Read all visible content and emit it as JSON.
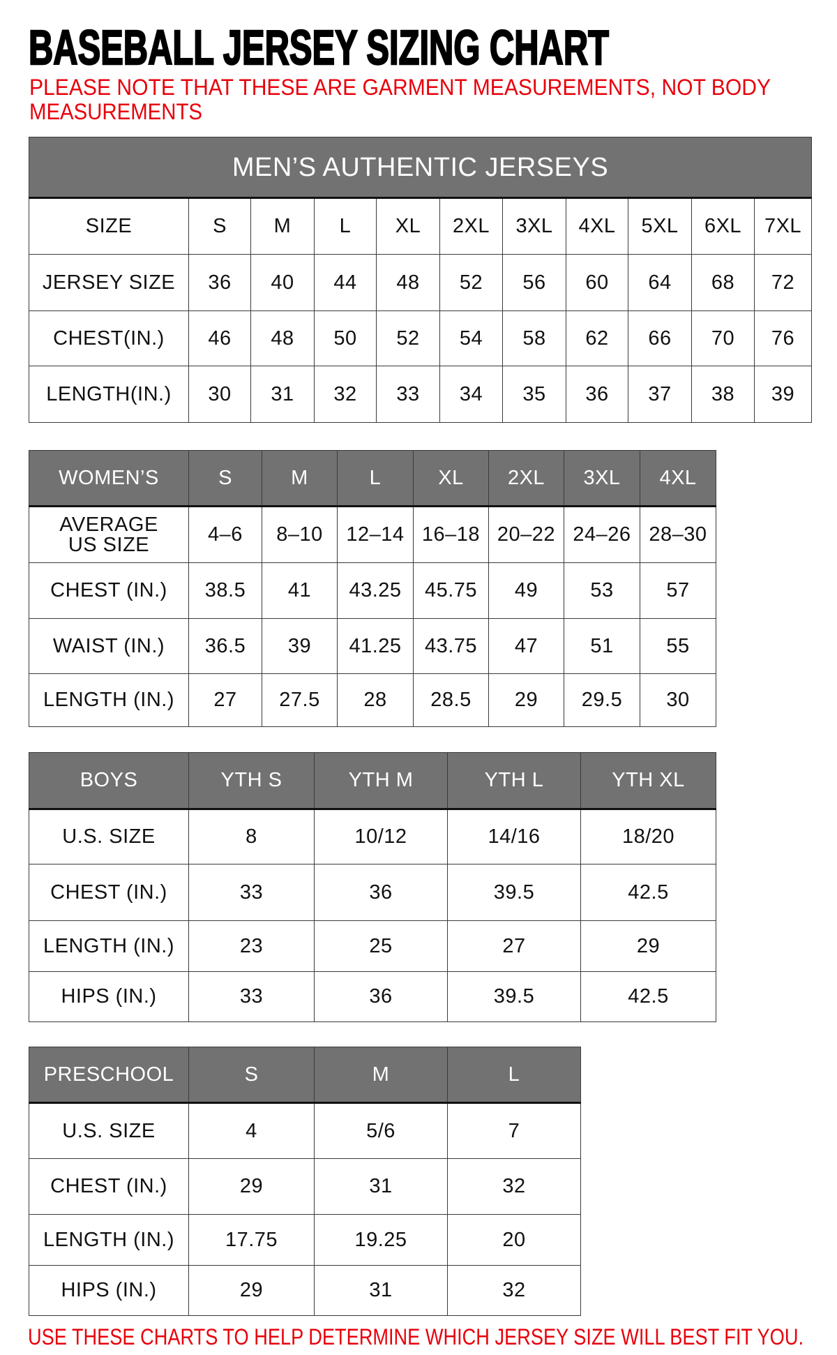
{
  "title": "BASEBALL JERSEY SIZING CHART",
  "note_top_line1": "PLEASE NOTE THAT THESE ARE GARMENT MEASUREMENTS, NOT BODY",
  "note_top_line2": "MEASUREMENTS",
  "note_bottom": "USE THESE CHARTS TO HELP DETERMINE WHICH JERSEY SIZE WILL BEST FIT YOU.",
  "colors": {
    "header_bg": "#727272",
    "note_red": "#e8000b",
    "border": "#3a3a3a"
  },
  "mens": {
    "title": "MEN’S AUTHENTIC JERSEYS",
    "header": [
      "SIZE",
      "S",
      "M",
      "L",
      "XL",
      "2XL",
      "3XL",
      "4XL",
      "5XL",
      "6XL",
      "7XL"
    ],
    "rows": [
      [
        "JERSEY SIZE",
        "36",
        "40",
        "44",
        "48",
        "52",
        "56",
        "60",
        "64",
        "68",
        "72"
      ],
      [
        "CHEST(IN.)",
        "46",
        "48",
        "50",
        "52",
        "54",
        "58",
        "62",
        "66",
        "70",
        "76"
      ],
      [
        "LENGTH(IN.)",
        "30",
        "31",
        "32",
        "33",
        "34",
        "35",
        "36",
        "37",
        "38",
        "39"
      ]
    ]
  },
  "womens": {
    "header": [
      "WOMEN’S",
      "S",
      "M",
      "L",
      "XL",
      "2XL",
      "3XL",
      "4XL"
    ],
    "rows": [
      [
        "AVERAGE\nUS SIZE",
        "4–6",
        "8–10",
        "12–14",
        "16–18",
        "20–22",
        "24–26",
        "28–30"
      ],
      [
        "CHEST (IN.)",
        "38.5",
        "41",
        "43.25",
        "45.75",
        "49",
        "53",
        "57"
      ],
      [
        "WAIST (IN.)",
        "36.5",
        "39",
        "41.25",
        "43.75",
        "47",
        "51",
        "55"
      ],
      [
        "LENGTH (IN.)",
        "27",
        "27.5",
        "28",
        "28.5",
        "29",
        "29.5",
        "30"
      ]
    ]
  },
  "boys": {
    "header": [
      "BOYS",
      "YTH S",
      "YTH M",
      "YTH L",
      "YTH XL"
    ],
    "rows": [
      [
        "U.S. SIZE",
        "8",
        "10/12",
        "14/16",
        "18/20"
      ],
      [
        "CHEST (IN.)",
        "33",
        "36",
        "39.5",
        "42.5"
      ],
      [
        "LENGTH (IN.)",
        "23",
        "25",
        "27",
        "29"
      ],
      [
        "HIPS (IN.)",
        "33",
        "36",
        "39.5",
        "42.5"
      ]
    ]
  },
  "preschool": {
    "header": [
      "PRESCHOOL",
      "S",
      "M",
      "L"
    ],
    "rows": [
      [
        "U.S. SIZE",
        "4",
        "5/6",
        "7"
      ],
      [
        "CHEST (IN.)",
        "29",
        "31",
        "32"
      ],
      [
        "LENGTH (IN.)",
        "17.75",
        "19.25",
        "20"
      ],
      [
        "HIPS (IN.)",
        "29",
        "31",
        "32"
      ]
    ]
  }
}
